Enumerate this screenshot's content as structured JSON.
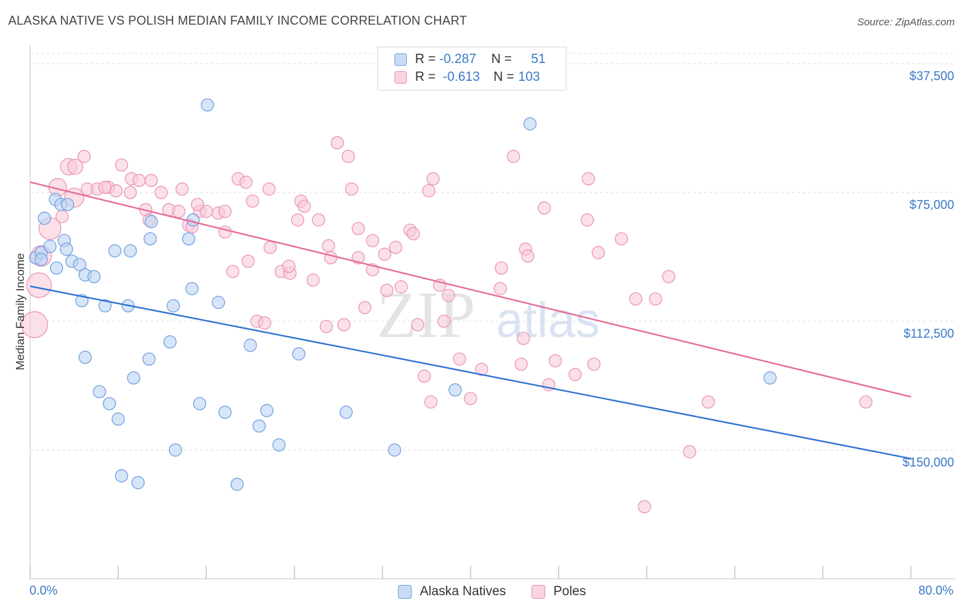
{
  "title": "ALASKA NATIVE VS POLISH MEDIAN FAMILY INCOME CORRELATION CHART",
  "source": "Source: ZipAtlas.com",
  "watermark": {
    "zip": "ZIP",
    "atlas": "atlas"
  },
  "legend": {
    "rows": [
      {
        "r_label": "R =",
        "r_value": "-0.287",
        "n_label": "N =",
        "n_value": "51",
        "color": "#a9c8ee"
      },
      {
        "r_label": "R =",
        "r_value": "-0.613",
        "n_label": "N =",
        "n_value": "103",
        "color": "#f4b6cb"
      }
    ]
  },
  "bottom_legend": [
    {
      "label": "Alaska Natives",
      "color": "#a9c8ee"
    },
    {
      "label": "Poles",
      "color": "#f4b6cb"
    }
  ],
  "x_axis": {
    "min_label": "0.0%",
    "max_label": "80.0%"
  },
  "y_axis": {
    "label": "Median Family Income",
    "ticks": [
      "$150,000",
      "$112,500",
      "$75,000",
      "$37,500"
    ]
  },
  "colors": {
    "blue": "#2e72d2",
    "pink": "#e56b95",
    "blue_fill": "#a9c8ee",
    "pink_fill": "#f4b6cb",
    "tick_text": "#3a78c9"
  },
  "chart_data": {
    "type": "scatter",
    "xlim": [
      0,
      80
    ],
    "ylim": [
      0,
      153000
    ],
    "y_ticks": [
      37500,
      75000,
      112500,
      150000
    ],
    "x_ticks": [
      0,
      8,
      16,
      24,
      32,
      40,
      48,
      56,
      64,
      72,
      80
    ],
    "series": [
      {
        "name": "Alaska Natives",
        "color": "#2e72d2",
        "trend": {
          "x": [
            0,
            80
          ],
          "y": [
            85200,
            35000
          ]
        },
        "points": [
          [
            0.5,
            93500
          ],
          [
            1.0,
            95000
          ],
          [
            1.8,
            96800
          ],
          [
            2.3,
            110500
          ],
          [
            1.3,
            105000
          ],
          [
            2.8,
            109000
          ],
          [
            3.4,
            109000
          ],
          [
            3.1,
            98500
          ],
          [
            3.3,
            96000
          ],
          [
            3.8,
            92500
          ],
          [
            2.4,
            90500
          ],
          [
            4.5,
            91500
          ],
          [
            5.0,
            88500
          ],
          [
            7.7,
            95500
          ],
          [
            9.1,
            95500
          ],
          [
            10.9,
            99000
          ],
          [
            11.0,
            104000
          ],
          [
            14.4,
            99000
          ],
          [
            14.8,
            104500
          ],
          [
            16.1,
            138000
          ],
          [
            4.7,
            81000
          ],
          [
            6.8,
            79500
          ],
          [
            8.9,
            79500
          ],
          [
            13.0,
            79500
          ],
          [
            14.7,
            84500
          ],
          [
            17.1,
            80500
          ],
          [
            12.7,
            69000
          ],
          [
            20.0,
            68000
          ],
          [
            24.4,
            65500
          ],
          [
            5.0,
            64500
          ],
          [
            10.8,
            64000
          ],
          [
            9.4,
            58500
          ],
          [
            6.3,
            54500
          ],
          [
            7.2,
            51000
          ],
          [
            15.4,
            51000
          ],
          [
            8.0,
            46500
          ],
          [
            17.7,
            48500
          ],
          [
            21.5,
            49000
          ],
          [
            28.7,
            48500
          ],
          [
            20.8,
            44500
          ],
          [
            13.2,
            37500
          ],
          [
            22.6,
            39000
          ],
          [
            33.1,
            37500
          ],
          [
            38.6,
            55000
          ],
          [
            67.2,
            58500
          ],
          [
            45.4,
            132500
          ],
          [
            8.3,
            30000
          ],
          [
            9.8,
            28000
          ],
          [
            18.8,
            27500
          ],
          [
            1.0,
            93000
          ],
          [
            5.8,
            88000
          ]
        ]
      },
      {
        "name": "Poles",
        "color": "#e56b95",
        "trend": {
          "x": [
            0,
            80
          ],
          "y": [
            115500,
            53000
          ]
        },
        "points": [
          [
            4.9,
            123000
          ],
          [
            3.5,
            120000
          ],
          [
            4.1,
            120000
          ],
          [
            8.3,
            120500
          ],
          [
            27.9,
            127000
          ],
          [
            28.9,
            123000
          ],
          [
            43.9,
            123000
          ],
          [
            2.5,
            114000
          ],
          [
            5.2,
            113500
          ],
          [
            6.1,
            113500
          ],
          [
            7.1,
            114000
          ],
          [
            7.8,
            113000
          ],
          [
            9.2,
            116500
          ],
          [
            9.9,
            116000
          ],
          [
            11.0,
            116000
          ],
          [
            9.1,
            112500
          ],
          [
            11.9,
            112500
          ],
          [
            13.8,
            113500
          ],
          [
            18.9,
            116500
          ],
          [
            19.6,
            115500
          ],
          [
            21.7,
            113500
          ],
          [
            29.2,
            113500
          ],
          [
            36.6,
            116500
          ],
          [
            36.2,
            113000
          ],
          [
            50.7,
            116500
          ],
          [
            2.9,
            105500
          ],
          [
            1.8,
            102000
          ],
          [
            10.5,
            107500
          ],
          [
            10.8,
            104500
          ],
          [
            12.6,
            107500
          ],
          [
            13.5,
            107000
          ],
          [
            14.4,
            103000
          ],
          [
            14.7,
            102500
          ],
          [
            15.4,
            107000
          ],
          [
            16.0,
            107000
          ],
          [
            17.1,
            106500
          ],
          [
            17.7,
            107000
          ],
          [
            20.2,
            110000
          ],
          [
            24.6,
            110000
          ],
          [
            24.9,
            108500
          ],
          [
            24.3,
            104500
          ],
          [
            26.2,
            104500
          ],
          [
            34.5,
            101500
          ],
          [
            34.8,
            100500
          ],
          [
            29.8,
            102000
          ],
          [
            17.7,
            101000
          ],
          [
            21.8,
            96500
          ],
          [
            31.1,
            98500
          ],
          [
            32.2,
            94500
          ],
          [
            33.2,
            96500
          ],
          [
            46.7,
            108000
          ],
          [
            50.6,
            104500
          ],
          [
            53.7,
            99000
          ],
          [
            1.0,
            94000
          ],
          [
            18.4,
            89500
          ],
          [
            19.8,
            92500
          ],
          [
            22.8,
            89500
          ],
          [
            23.6,
            89000
          ],
          [
            23.5,
            91000
          ],
          [
            25.7,
            87000
          ],
          [
            27.3,
            93500
          ],
          [
            29.8,
            93500
          ],
          [
            31.1,
            90000
          ],
          [
            32.4,
            84000
          ],
          [
            33.7,
            85000
          ],
          [
            37.2,
            85500
          ],
          [
            38.0,
            82500
          ],
          [
            42.8,
            90500
          ],
          [
            45.0,
            96000
          ],
          [
            45.2,
            94000
          ],
          [
            51.6,
            95000
          ],
          [
            58.0,
            88000
          ],
          [
            0.8,
            85500
          ],
          [
            30.4,
            79000
          ],
          [
            42.7,
            84500
          ],
          [
            55.0,
            81500
          ],
          [
            56.8,
            81500
          ],
          [
            0.4,
            74000
          ],
          [
            20.6,
            75000
          ],
          [
            21.3,
            74500
          ],
          [
            26.9,
            73500
          ],
          [
            28.5,
            74000
          ],
          [
            35.2,
            74000
          ],
          [
            37.6,
            75000
          ],
          [
            44.8,
            70000
          ],
          [
            39.0,
            64000
          ],
          [
            41.0,
            61000
          ],
          [
            44.6,
            62500
          ],
          [
            47.7,
            63500
          ],
          [
            51.2,
            62500
          ],
          [
            35.8,
            59000
          ],
          [
            49.5,
            59500
          ],
          [
            47.1,
            56500
          ],
          [
            36.4,
            51500
          ],
          [
            40.0,
            52500
          ],
          [
            61.6,
            51500
          ],
          [
            75.9,
            51500
          ],
          [
            59.9,
            37000
          ],
          [
            55.8,
            21000
          ],
          [
            4.0,
            111000
          ],
          [
            6.8,
            114000
          ],
          [
            15.2,
            109000
          ],
          [
            27.1,
            97000
          ]
        ]
      }
    ]
  }
}
